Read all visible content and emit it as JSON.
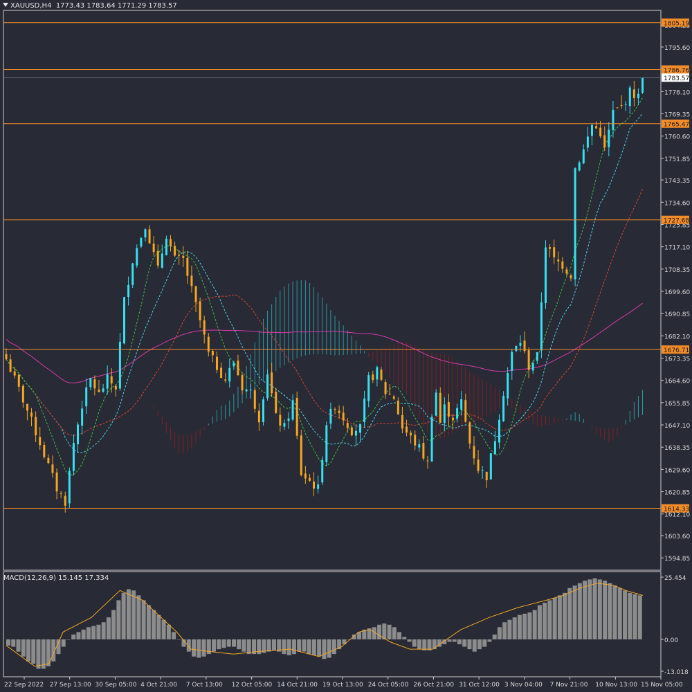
{
  "header": {
    "symbol_tf": "XAUUSD,H4",
    "ohlc": "1773.43 1783.64 1771.29 1783.57"
  },
  "macd_header": {
    "label": "MACD(12,26,9) 15.145 17.334"
  },
  "colors": {
    "background": "#282a36",
    "bull": "#37e0f0",
    "bear": "#f5a623",
    "level_line": "#f28c28",
    "ma_magenta": "#d63aa8",
    "tenkan": "#4cd3e8",
    "kijun": "#d9452b",
    "chikou": "#3fbf3f",
    "cloud_up": "#2aa8b0",
    "cloud_down": "#8a1f1f",
    "macd_hist": "#8c8c8c",
    "macd_signal": "#f5a623",
    "grid_text": "#d8d8d8"
  },
  "chart_data": [
    {
      "type": "candlestick",
      "title": "XAUUSD,H4",
      "ylim": [
        1590,
        1810
      ],
      "y_ticks": [
        "1804.25",
        "1795.60",
        "1786.95",
        "1778.10",
        "1769.35",
        "1760.60",
        "1751.85",
        "1743.35",
        "1734.60",
        "1725.85",
        "1717.10",
        "1708.35",
        "1699.60",
        "1690.85",
        "1682.10",
        "1673.35",
        "1664.60",
        "1655.85",
        "1647.10",
        "1638.35",
        "1629.60",
        "1620.85",
        "1612.10",
        "1603.60",
        "1594.85"
      ],
      "x_labels": [
        "22 Sep 2022",
        "27 Sep 13:00",
        "30 Sep 05:00",
        "4 Oct 21:00",
        "7 Oct 13:00",
        "12 Oct 05:00",
        "14 Oct 21:00",
        "19 Oct 13:00",
        "24 Oct 05:00",
        "26 Oct 21:00",
        "31 Oct 12:00",
        "3 Nov 04:00",
        "7 Nov 21:00",
        "10 Nov 13:00",
        "15 Nov 05:00"
      ],
      "horizontal_levels": [
        {
          "label": "1805.19",
          "value": 1805.19
        },
        {
          "label": "1786.76",
          "value": 1786.76
        },
        {
          "label": "1765.47",
          "value": 1765.47
        },
        {
          "label": "1727.68",
          "value": 1727.68
        },
        {
          "label": "1676.71",
          "value": 1676.71
        },
        {
          "label": "1614.33",
          "value": 1614.33
        }
      ],
      "current_price": {
        "label": "1783.57",
        "value": 1783.57
      },
      "close_path": [
        [
          0,
          1673
        ],
        [
          4,
          1657
        ],
        [
          8,
          1640
        ],
        [
          12,
          1622
        ],
        [
          14,
          1617
        ],
        [
          16,
          1640
        ],
        [
          18,
          1655
        ],
        [
          20,
          1665
        ],
        [
          22,
          1659
        ],
        [
          24,
          1665
        ],
        [
          26,
          1662
        ],
        [
          28,
          1696
        ],
        [
          30,
          1712
        ],
        [
          33,
          1726
        ],
        [
          36,
          1708
        ],
        [
          38,
          1722
        ],
        [
          40,
          1712
        ],
        [
          42,
          1712
        ],
        [
          44,
          1700
        ],
        [
          46,
          1688
        ],
        [
          48,
          1675
        ],
        [
          50,
          1670
        ],
        [
          52,
          1665
        ],
        [
          54,
          1672
        ],
        [
          56,
          1662
        ],
        [
          58,
          1660
        ],
        [
          60,
          1650
        ],
        [
          62,
          1668
        ],
        [
          64,
          1650
        ],
        [
          66,
          1646
        ],
        [
          68,
          1656
        ],
        [
          70,
          1628
        ],
        [
          72,
          1625
        ],
        [
          74,
          1622
        ],
        [
          76,
          1648
        ],
        [
          78,
          1655
        ],
        [
          80,
          1650
        ],
        [
          82,
          1645
        ],
        [
          84,
          1646
        ],
        [
          86,
          1665
        ],
        [
          88,
          1668
        ],
        [
          90,
          1660
        ],
        [
          92,
          1658
        ],
        [
          94,
          1646
        ],
        [
          96,
          1642
        ],
        [
          98,
          1638
        ],
        [
          100,
          1632
        ],
        [
          101,
          1652
        ],
        [
          102,
          1660
        ],
        [
          103,
          1648
        ],
        [
          104,
          1654
        ],
        [
          106,
          1650
        ],
        [
          108,
          1656
        ],
        [
          110,
          1640
        ],
        [
          112,
          1630
        ],
        [
          114,
          1627
        ],
        [
          116,
          1642
        ],
        [
          118,
          1660
        ],
        [
          120,
          1675
        ],
        [
          122,
          1680
        ],
        [
          124,
          1670
        ],
        [
          126,
          1674
        ],
        [
          128,
          1718
        ],
        [
          130,
          1712
        ],
        [
          132,
          1710
        ],
        [
          134,
          1706
        ],
        [
          135,
          1748
        ],
        [
          137,
          1755
        ],
        [
          139,
          1765
        ],
        [
          141,
          1762
        ],
        [
          142,
          1755
        ],
        [
          144,
          1770
        ],
        [
          146,
          1772
        ],
        [
          148,
          1778
        ],
        [
          150,
          1776
        ],
        [
          151,
          1783.57
        ]
      ],
      "n_bars": 152
    },
    {
      "type": "histogram",
      "title": "MACD(12,26,9)",
      "ylim": [
        -13.018,
        25.454
      ],
      "y_ticks": [
        "25.454",
        "0.00",
        "-13.018"
      ],
      "values": [
        -2.5,
        -3,
        -5,
        -7,
        -9,
        -10,
        -12,
        -12,
        -11,
        -9,
        -6,
        -3,
        0,
        2,
        3,
        4,
        5,
        5.5,
        6,
        7,
        9,
        12,
        16,
        19,
        20.5,
        20,
        18,
        16,
        14,
        12,
        10,
        8,
        6,
        3,
        0,
        -3,
        -5,
        -7,
        -7.5,
        -7,
        -6,
        -5,
        -4,
        -3.5,
        -3,
        -3,
        -4,
        -5,
        -6,
        -6,
        -6,
        -5.5,
        -5,
        -4.5,
        -5,
        -6,
        -6.5,
        -6,
        -5,
        -5,
        -6,
        -6.5,
        -7,
        -8,
        -7.5,
        -6,
        -4,
        -2,
        0,
        2,
        3,
        4,
        4.5,
        5,
        6,
        6.5,
        6,
        5,
        3,
        1,
        -1,
        -3,
        -4,
        -4.5,
        -4.5,
        -4,
        -3,
        -2,
        -1,
        -1,
        -2,
        -3,
        -4,
        -5,
        -4,
        -3,
        -1,
        2,
        5,
        7,
        8,
        9,
        10,
        10.5,
        11,
        12,
        14,
        15,
        16,
        17,
        18,
        19,
        21,
        22,
        23,
        24,
        24.5,
        25,
        24.5,
        24,
        23,
        22,
        21,
        20,
        19,
        18.5,
        18
      ],
      "signal_points": [
        [
          0,
          -2.5
        ],
        [
          10,
          -11
        ],
        [
          15,
          -10
        ],
        [
          20,
          3
        ],
        [
          30,
          9
        ],
        [
          40,
          20
        ],
        [
          48,
          16
        ],
        [
          60,
          3
        ],
        [
          65,
          -4
        ],
        [
          72,
          -5
        ],
        [
          80,
          -6
        ],
        [
          88,
          -5
        ],
        [
          100,
          -4
        ],
        [
          110,
          -7
        ],
        [
          118,
          -3
        ],
        [
          124,
          3
        ],
        [
          128,
          4
        ],
        [
          135,
          -1
        ],
        [
          142,
          -4
        ],
        [
          150,
          -4
        ],
        [
          160,
          4
        ],
        [
          170,
          9
        ],
        [
          180,
          13
        ],
        [
          190,
          16
        ],
        [
          196,
          18
        ],
        [
          202,
          21
        ],
        [
          208,
          23
        ],
        [
          214,
          22
        ],
        [
          218,
          20
        ],
        [
          224,
          18
        ]
      ],
      "signal_label": "15.145 17.334"
    }
  ]
}
